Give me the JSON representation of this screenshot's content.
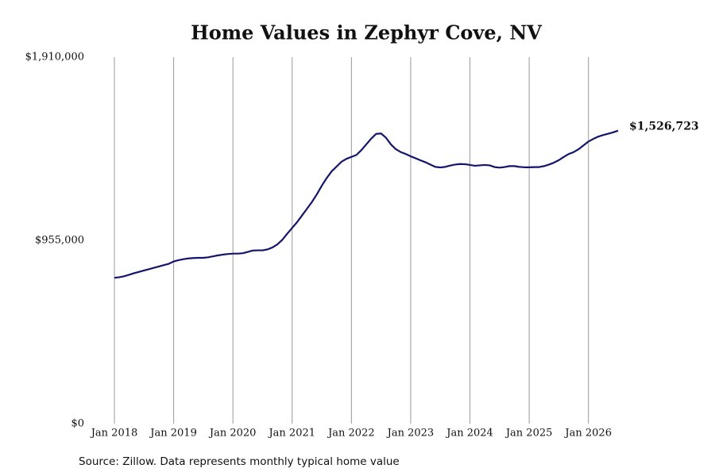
{
  "chart_data": {
    "type": "line",
    "title": "Home Values in Zephyr Cove, NV",
    "source": "Source: Zillow. Data represents monthly typical home value",
    "x": [
      "2018-01",
      "2018-02",
      "2018-03",
      "2018-04",
      "2018-05",
      "2018-06",
      "2018-07",
      "2018-08",
      "2018-09",
      "2018-10",
      "2018-11",
      "2018-12",
      "2019-01",
      "2019-02",
      "2019-03",
      "2019-04",
      "2019-05",
      "2019-06",
      "2019-07",
      "2019-08",
      "2019-09",
      "2019-10",
      "2019-11",
      "2019-12",
      "2020-01",
      "2020-02",
      "2020-03",
      "2020-04",
      "2020-05",
      "2020-06",
      "2020-07",
      "2020-08",
      "2020-09",
      "2020-10",
      "2020-11",
      "2020-12",
      "2021-01",
      "2021-02",
      "2021-03",
      "2021-04",
      "2021-05",
      "2021-06",
      "2021-07",
      "2021-08",
      "2021-09",
      "2021-10",
      "2021-11",
      "2021-12",
      "2022-01",
      "2022-02",
      "2022-03",
      "2022-04",
      "2022-05",
      "2022-06",
      "2022-07",
      "2022-08",
      "2022-09",
      "2022-10",
      "2022-11",
      "2022-12",
      "2023-01",
      "2023-02",
      "2023-03",
      "2023-04",
      "2023-05",
      "2023-06",
      "2023-07",
      "2023-08",
      "2023-09",
      "2023-10",
      "2023-11",
      "2023-12",
      "2024-01",
      "2024-02",
      "2024-03",
      "2024-04",
      "2024-05",
      "2024-06",
      "2024-07",
      "2024-08",
      "2024-09",
      "2024-10",
      "2024-11",
      "2024-12",
      "2025-01",
      "2025-02",
      "2025-03",
      "2025-04",
      "2025-05",
      "2025-06",
      "2025-07",
      "2025-08",
      "2025-09",
      "2025-10",
      "2025-11",
      "2025-12",
      "2026-01",
      "2026-02",
      "2026-03",
      "2026-04",
      "2026-05",
      "2026-06",
      "2026-07"
    ],
    "series": [
      {
        "name": "Home value",
        "color": "#14146b",
        "values": [
          760000,
          763000,
          768000,
          776000,
          784000,
          791000,
          798000,
          805000,
          812000,
          819000,
          826000,
          833000,
          845000,
          852000,
          857000,
          861000,
          863000,
          864000,
          864000,
          867000,
          872000,
          877000,
          881000,
          884000,
          886000,
          886000,
          888000,
          895000,
          902000,
          903000,
          903000,
          908000,
          918000,
          934000,
          958000,
          990000,
          1020000,
          1050000,
          1085000,
          1120000,
          1155000,
          1195000,
          1240000,
          1280000,
          1315000,
          1340000,
          1365000,
          1380000,
          1390000,
          1400000,
          1425000,
          1455000,
          1485000,
          1510000,
          1512000,
          1490000,
          1455000,
          1430000,
          1415000,
          1405000,
          1393000,
          1383000,
          1372000,
          1362000,
          1350000,
          1338000,
          1335000,
          1338000,
          1345000,
          1350000,
          1353000,
          1352000,
          1348000,
          1344000,
          1346000,
          1348000,
          1346000,
          1337000,
          1334000,
          1337000,
          1342000,
          1342000,
          1338000,
          1336000,
          1336000,
          1337000,
          1337000,
          1342000,
          1350000,
          1360000,
          1373000,
          1390000,
          1405000,
          1415000,
          1430000,
          1450000,
          1470000,
          1484000,
          1496000,
          1504000,
          1511000,
          1518000,
          1526723
        ],
        "end_label": "$1,526,723"
      }
    ],
    "xlim": [
      "2018-01",
      "2026-07"
    ],
    "xticks": [
      {
        "value": "2018-01",
        "label": "Jan 2018"
      },
      {
        "value": "2019-01",
        "label": "Jan 2019"
      },
      {
        "value": "2020-01",
        "label": "Jan 2020"
      },
      {
        "value": "2021-01",
        "label": "Jan 2021"
      },
      {
        "value": "2022-01",
        "label": "Jan 2022"
      },
      {
        "value": "2023-01",
        "label": "Jan 2023"
      },
      {
        "value": "2024-01",
        "label": "Jan 2024"
      },
      {
        "value": "2025-01",
        "label": "Jan 2025"
      },
      {
        "value": "2026-01",
        "label": "Jan 2026"
      }
    ],
    "ylim": [
      0,
      1910000
    ],
    "yticks": [
      {
        "value": 0,
        "label": "$0"
      },
      {
        "value": 955000,
        "label": "$955,000"
      },
      {
        "value": 1910000,
        "label": "$1,910,000"
      }
    ],
    "grid": "x"
  }
}
